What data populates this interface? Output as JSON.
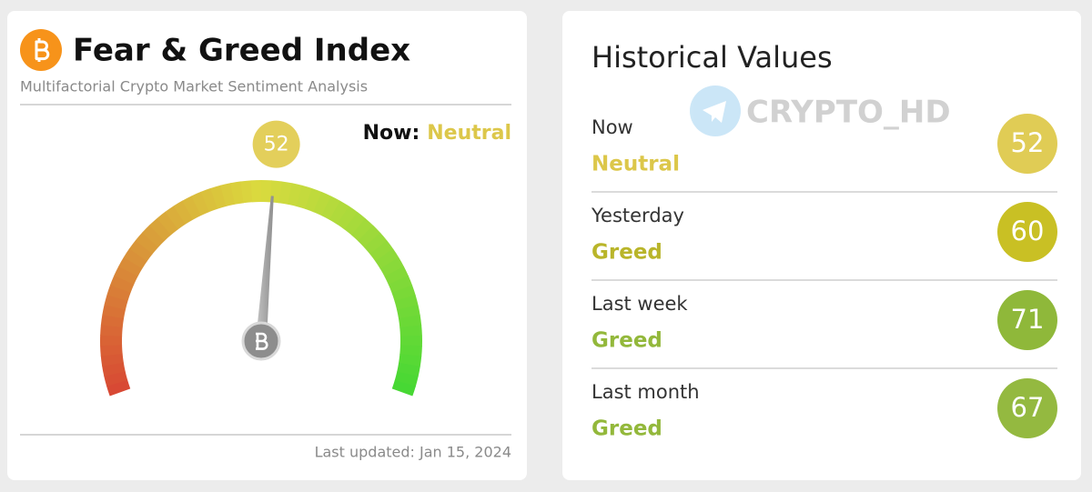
{
  "fear_greed": {
    "title": "Fear & Greed Index",
    "subtitle": "Multifactorial Crypto Market Sentiment Analysis",
    "now_label": "Now:",
    "classification": "Neutral",
    "classification_color": "#dcc74a",
    "value": 52,
    "value_color": "#e3cf5b",
    "range": [
      0,
      100
    ],
    "last_updated": "Last updated: Jan 15, 2024"
  },
  "historical": {
    "title": "Historical Values",
    "rows": [
      {
        "label": "Now",
        "classification": "Neutral",
        "value": 52,
        "color": "#e0cc55",
        "text_color": "#dcc74a"
      },
      {
        "label": "Yesterday",
        "classification": "Greed",
        "value": 60,
        "color": "#c9c024",
        "text_color": "#b9b52a"
      },
      {
        "label": "Last week",
        "classification": "Greed",
        "value": 71,
        "color": "#8fb83a",
        "text_color": "#93b83b"
      },
      {
        "label": "Last month",
        "classification": "Greed",
        "value": 67,
        "color": "#94b940",
        "text_color": "#93b83b"
      }
    ]
  },
  "watermark": "CRYPTO_HD"
}
